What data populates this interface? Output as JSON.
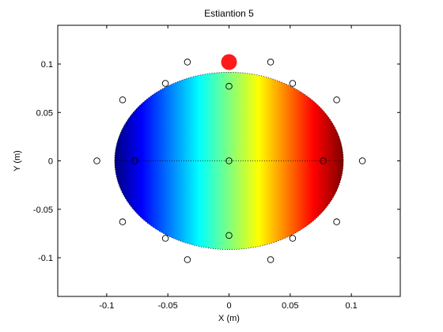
{
  "chart_data": {
    "type": "scatter",
    "title": "Estiantion 5",
    "xlabel": "X (m)",
    "ylabel": "Y (m)",
    "xlim": [
      -0.14,
      0.14
    ],
    "ylim": [
      -0.14,
      0.14
    ],
    "x_ticks": [
      -0.1,
      -0.05,
      0,
      0.05,
      0.1
    ],
    "x_tick_labels": [
      "-0.1",
      "-0.05",
      "0",
      "0.05",
      "0.1"
    ],
    "y_ticks": [
      -0.1,
      -0.05,
      0,
      0.05,
      0.1
    ],
    "y_tick_labels": [
      "-0.1",
      "-0.05",
      "0",
      "0.05",
      "0.1"
    ],
    "field": {
      "shape": "ellipse",
      "center": [
        0,
        0
      ],
      "semi_axes": [
        0.0935,
        0.0915
      ],
      "colormap": "jet",
      "gradient_direction": "x"
    },
    "dotted_lines": [
      {
        "from": [
          -0.0935,
          0
        ],
        "to": [
          0.0935,
          0
        ]
      }
    ],
    "electrodes": [
      {
        "x": -0.108,
        "y": 0.0
      },
      {
        "x": -0.087,
        "y": 0.063
      },
      {
        "x": -0.052,
        "y": 0.08
      },
      {
        "x": -0.034,
        "y": 0.102
      },
      {
        "x": 0.034,
        "y": 0.102
      },
      {
        "x": 0.052,
        "y": 0.08
      },
      {
        "x": 0.088,
        "y": 0.063
      },
      {
        "x": 0.109,
        "y": 0.0
      },
      {
        "x": 0.088,
        "y": -0.063
      },
      {
        "x": 0.052,
        "y": -0.08
      },
      {
        "x": 0.034,
        "y": -0.102
      },
      {
        "x": -0.034,
        "y": -0.102
      },
      {
        "x": -0.052,
        "y": -0.08
      },
      {
        "x": -0.087,
        "y": -0.063
      },
      {
        "x": -0.077,
        "y": 0.0
      },
      {
        "x": 0.0,
        "y": 0.077
      },
      {
        "x": 0.0,
        "y": 0.0
      },
      {
        "x": 0.077,
        "y": 0.0
      },
      {
        "x": 0.0,
        "y": -0.077
      }
    ],
    "source_estimate": {
      "x": 0.0,
      "y": 0.102
    },
    "colors": {
      "source": "#ff1a1a",
      "electrode_stroke": "#000000",
      "axis": "#000000"
    }
  }
}
